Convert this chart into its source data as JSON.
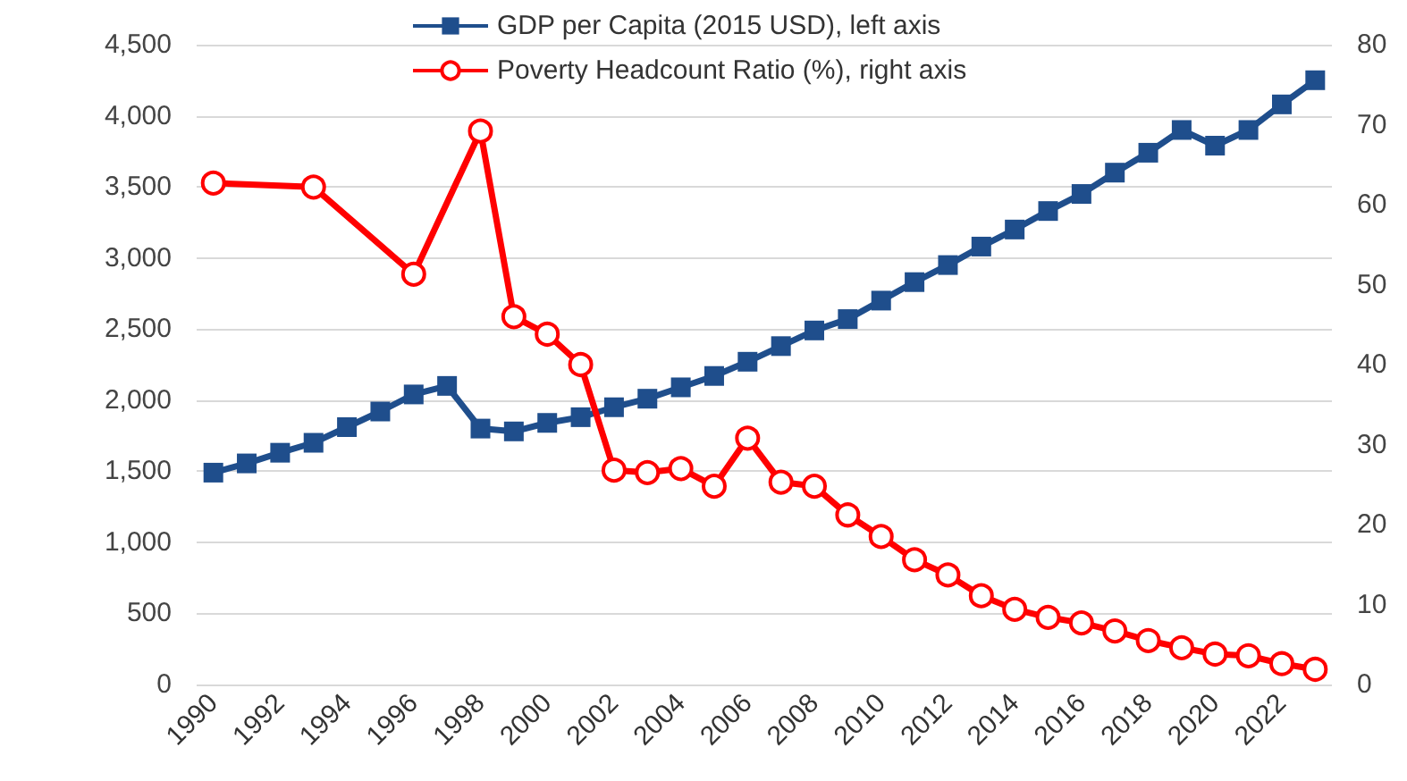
{
  "chart_data": {
    "type": "line",
    "categories": [
      "1990",
      null,
      "1992",
      null,
      "1994",
      null,
      "1996",
      null,
      "1998",
      null,
      "2000",
      null,
      "2002",
      null,
      "2004",
      null,
      "2006",
      null,
      "2008",
      null,
      "2010",
      null,
      "2012",
      null,
      "2014",
      null,
      "2016",
      null,
      "2018",
      null,
      "2020",
      null,
      "2022",
      null
    ],
    "series": [
      {
        "name": "GDP per Capita (2015 USD), left axis",
        "color": "#1f4e8c",
        "marker": "square",
        "values": [
          1490,
          1555,
          1630,
          1700,
          1810,
          1920,
          2040,
          2100,
          1800,
          1780,
          1840,
          1880,
          1950,
          2010,
          2090,
          2170,
          2270,
          2380,
          2490,
          2570,
          2700,
          2830,
          2950,
          3080,
          3200,
          3330,
          3450,
          3600,
          3740,
          3900,
          3790,
          3900,
          4080,
          4250
        ]
      },
      {
        "name": "Poverty Headcount Ratio (%), right axis",
        "color": "#ff0000",
        "marker": "circle",
        "axis": "y2",
        "values": [
          62.7,
          null,
          null,
          62.2,
          null,
          null,
          51.3,
          null,
          69.2,
          46.0,
          43.8,
          40.0,
          26.8,
          26.5,
          27.0,
          24.8,
          30.8,
          25.3,
          24.8,
          21.2,
          18.5,
          15.6,
          13.7,
          11.1,
          9.4,
          8.4,
          7.7,
          6.7,
          5.5,
          4.6,
          3.8,
          3.6,
          2.6,
          1.9
        ]
      }
    ],
    "ylim": [
      0,
      4500
    ],
    "yticks": [
      {
        "value": 0,
        "label": "0"
      },
      {
        "value": 500,
        "label": "500"
      },
      {
        "value": 1000,
        "label": "1,000"
      },
      {
        "value": 1500,
        "label": "1,500"
      },
      {
        "value": 2000,
        "label": "2,000"
      },
      {
        "value": 2500,
        "label": "2,500"
      },
      {
        "value": 3000,
        "label": "3,000"
      },
      {
        "value": 3500,
        "label": "3,500"
      },
      {
        "value": 4000,
        "label": "4,000"
      },
      {
        "value": 4500,
        "label": "4,500"
      }
    ],
    "y2lim": [
      0,
      80
    ],
    "y2ticks": [
      0,
      10,
      20,
      30,
      40,
      50,
      60,
      70,
      80
    ],
    "grid": "y",
    "legend": "top",
    "line_style": "solid"
  }
}
